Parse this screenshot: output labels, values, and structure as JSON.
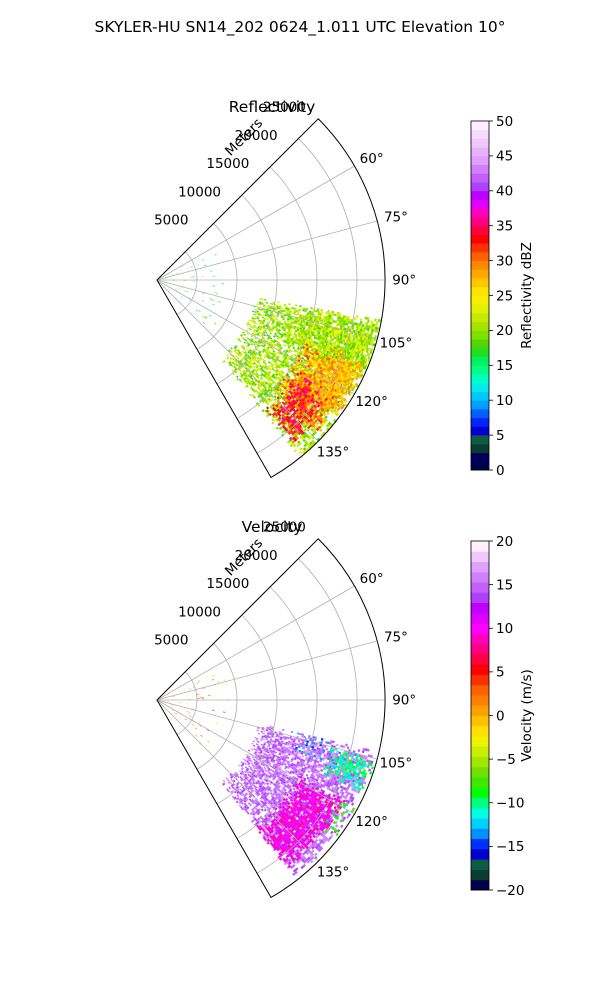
{
  "suptitle": "SKYLER-HU  SN14_202  0624_1.011 UTC Elevation 10°",
  "chart_data": [
    {
      "type": "heatmap",
      "projection": "polar-sector",
      "title": "Reflectivity",
      "range_label": "Meters",
      "r_ticks": [
        5000,
        10000,
        15000,
        20000,
        25000
      ],
      "r_tick_labels": [
        "5000",
        "10000",
        "15000",
        "20000",
        "25000"
      ],
      "rlim": [
        0,
        28500
      ],
      "theta_ticks": [
        45,
        60,
        75,
        90,
        105,
        120,
        135,
        150
      ],
      "theta_tick_labels": [
        "60°",
        "75°",
        "90°",
        "105°",
        "120°",
        "135°"
      ],
      "theta_tick_labeled": [
        60,
        75,
        90,
        105,
        120,
        135
      ],
      "theta_range_deg": [
        45,
        150
      ],
      "colorbar": {
        "label": "Reflectivity dBZ",
        "vmin": 0,
        "vmax": 50,
        "ticks": [
          0,
          5,
          10,
          15,
          20,
          25,
          30,
          35,
          40,
          45,
          50
        ],
        "tick_labels": [
          "0",
          "5",
          "10",
          "15",
          "20",
          "25",
          "30",
          "35",
          "40",
          "45",
          "50"
        ],
        "colors": [
          "#00004c",
          "#00005c",
          "#0c3c30",
          "#0c5c44",
          "#0000d0",
          "#0024ff",
          "#0060ff",
          "#00a0ff",
          "#00c8ff",
          "#00ecec",
          "#00ffc4",
          "#00ff80",
          "#00f060",
          "#20e020",
          "#50d800",
          "#80e000",
          "#a4e400",
          "#c4ea00",
          "#e0f000",
          "#f4f000",
          "#ffe400",
          "#ffc800",
          "#ffa800",
          "#ff8800",
          "#ff6000",
          "#ff3000",
          "#ff0000",
          "#ff0040",
          "#ff0080",
          "#ff00c0",
          "#e000ff",
          "#c000ff",
          "#b040ff",
          "#c060ff",
          "#d080ff",
          "#e0a0ff",
          "#e8b0ff",
          "#f0c8ff",
          "#f8dcff",
          "#fff0ff"
        ]
      },
      "field_regions": [
        {
          "r": [
            12500,
            28300
          ],
          "theta": [
            100,
            141
          ],
          "value_range": [
            17,
            24
          ],
          "density": 0.65
        },
        {
          "r": [
            18000,
            28300
          ],
          "theta": [
            100,
            116
          ],
          "value_range": [
            18,
            24
          ],
          "density": 0.75
        },
        {
          "r": [
            20000,
            27500
          ],
          "theta": [
            113,
            133
          ],
          "value_range": [
            24,
            32
          ],
          "density": 0.85
        },
        {
          "r": [
            21000,
            26500
          ],
          "theta": [
            122,
            140
          ],
          "value_range": [
            28,
            37
          ],
          "density": 0.85
        },
        {
          "r": [
            23500,
            28200
          ],
          "theta": [
            111,
            127
          ],
          "value_range": [
            25,
            30
          ],
          "density": 0.8
        },
        {
          "r": [
            0,
            9000
          ],
          "theta": [
            60,
            135
          ],
          "value_range": [
            10,
            22
          ],
          "density": 0.02
        }
      ]
    },
    {
      "type": "heatmap",
      "projection": "polar-sector",
      "title": "Velocity",
      "range_label": "Meters",
      "r_ticks": [
        5000,
        10000,
        15000,
        20000,
        25000
      ],
      "r_tick_labels": [
        "5000",
        "10000",
        "15000",
        "20000",
        "25000"
      ],
      "rlim": [
        0,
        28500
      ],
      "theta_ticks": [
        45,
        60,
        75,
        90,
        105,
        120,
        135,
        150
      ],
      "theta_tick_labels": [
        "60°",
        "75°",
        "90°",
        "105°",
        "120°",
        "135°"
      ],
      "theta_tick_labeled": [
        60,
        75,
        90,
        105,
        120,
        135
      ],
      "theta_range_deg": [
        45,
        150
      ],
      "colorbar": {
        "label": "Velocity (m/s)",
        "vmin": -20,
        "vmax": 20,
        "ticks": [
          -20,
          -15,
          -10,
          -5,
          0,
          5,
          10,
          15,
          20
        ],
        "tick_labels": [
          "−20",
          "−15",
          "−10",
          "−5",
          "0",
          "5",
          "10",
          "15",
          "20"
        ],
        "colors": [
          "#00004c",
          "#0c3c30",
          "#0c5c44",
          "#0000d0",
          "#0030ff",
          "#0090ff",
          "#00d0ff",
          "#00ffe0",
          "#00ff80",
          "#00ff00",
          "#40e800",
          "#70e000",
          "#a0e800",
          "#c8f000",
          "#f0f000",
          "#ffe000",
          "#ffc000",
          "#ffa000",
          "#ff8000",
          "#ff6000",
          "#ff3000",
          "#ff0000",
          "#ff0040",
          "#ff0080",
          "#ff00c0",
          "#ff00ff",
          "#e000ff",
          "#c000ff",
          "#b040ff",
          "#c060ff",
          "#d080ff",
          "#e0a0ff",
          "#f0c8ff",
          "#fff0ff"
        ]
      },
      "field_regions": [
        {
          "r": [
            13000,
            28000
          ],
          "theta": [
            103,
            142
          ],
          "value_range": [
            13,
            17
          ],
          "density": 0.7
        },
        {
          "r": [
            20000,
            26500
          ],
          "theta": [
            118,
            142
          ],
          "value_range": [
            8,
            11
          ],
          "density": 0.8
        },
        {
          "r": [
            22500,
            28300
          ],
          "theta": [
            105,
            114
          ],
          "value_range": [
            -12,
            -9
          ],
          "density": 0.75
        },
        {
          "r": [
            26000,
            28000
          ],
          "theta": [
            118,
            128
          ],
          "value_range": [
            -11,
            -6
          ],
          "density": 0.5
        },
        {
          "r": [
            18000,
            22000
          ],
          "theta": [
            103,
            110
          ],
          "value_range": [
            -15,
            -12
          ],
          "density": 0.35
        },
        {
          "r": [
            0,
            9000
          ],
          "theta": [
            60,
            135
          ],
          "value_range": [
            -3,
            6
          ],
          "density": 0.02
        }
      ]
    }
  ]
}
